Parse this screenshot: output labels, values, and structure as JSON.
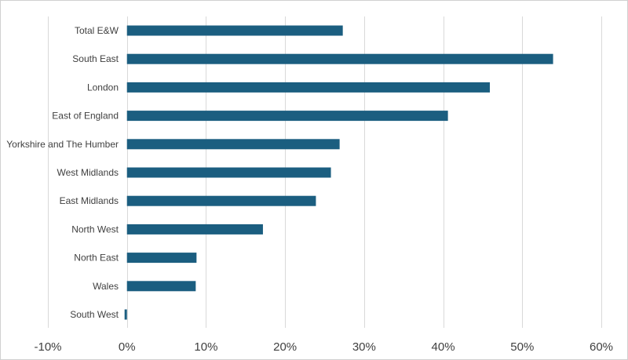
{
  "chart_data": {
    "type": "bar",
    "orientation": "horizontal",
    "title": "",
    "xlabel": "",
    "ylabel": "",
    "categories": [
      "Total E&W",
      "South East",
      "London",
      "East of England",
      "Yorkshire and The Humber",
      "West Midlands",
      "East Midlands",
      "North West",
      "North East",
      "Wales",
      "South West"
    ],
    "values": [
      27.3,
      53.9,
      45.9,
      40.6,
      26.9,
      25.8,
      23.9,
      17.2,
      8.8,
      8.7,
      -0.3
    ],
    "xlim": [
      -10,
      60
    ],
    "xticks": [
      -10,
      0,
      10,
      20,
      30,
      40,
      50,
      60
    ],
    "xtick_labels": [
      "-10%",
      "0%",
      "10%",
      "20%",
      "30%",
      "40%",
      "50%",
      "60%"
    ],
    "grid": "vertical",
    "bar_color": "#1b5e80"
  }
}
